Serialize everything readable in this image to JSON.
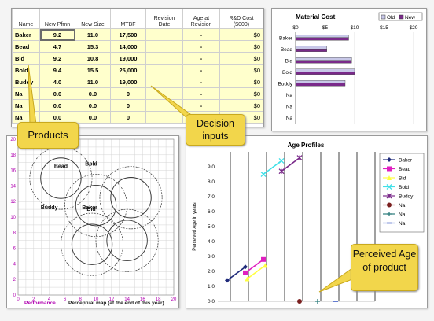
{
  "table": {
    "headers": [
      "Name",
      "New Pfmn",
      "New Size",
      "MTBF",
      "Revision Date",
      "Age at Revision",
      "R&D Cost ($000)"
    ],
    "rows": [
      {
        "name": "Baker",
        "pfmn": "9.2",
        "size": "11.0",
        "mtbf": "17,500",
        "rev": "",
        "age": "-",
        "cost": "$0"
      },
      {
        "name": "Bead",
        "pfmn": "4.7",
        "size": "15.3",
        "mtbf": "14,000",
        "rev": "",
        "age": "-",
        "cost": "$0"
      },
      {
        "name": "Bid",
        "pfmn": "9.2",
        "size": "10.8",
        "mtbf": "19,000",
        "rev": "",
        "age": "-",
        "cost": "$0"
      },
      {
        "name": "Bold",
        "pfmn": "9.4",
        "size": "15.5",
        "mtbf": "25,000",
        "rev": "",
        "age": "-",
        "cost": "$0"
      },
      {
        "name": "Buddy",
        "pfmn": "4.0",
        "size": "11.0",
        "mtbf": "19,000",
        "rev": "",
        "age": "-",
        "cost": "$0"
      },
      {
        "name": "Na",
        "pfmn": "0.0",
        "size": "0.0",
        "mtbf": "0",
        "rev": "",
        "age": "-",
        "cost": "$0"
      },
      {
        "name": "Na",
        "pfmn": "0.0",
        "size": "0.0",
        "mtbf": "0",
        "rev": "",
        "age": "-",
        "cost": "$0"
      },
      {
        "name": "Na",
        "pfmn": "0.0",
        "size": "0.0",
        "mtbf": "0",
        "rev": "",
        "age": "-",
        "cost": "$0"
      }
    ]
  },
  "callouts": {
    "products": "Products",
    "decision": "Decision inputs",
    "perceived": "Perceived Age of product"
  },
  "material_cost": {
    "title": "Material Cost",
    "legend": [
      "Old",
      "New"
    ],
    "x_ticks": [
      "$0",
      "$5",
      "$10",
      "$15",
      "$20"
    ],
    "categories": [
      "Baker",
      "Bead",
      "Bid",
      "Bold",
      "Buddy",
      "Na",
      "Na",
      "Na"
    ],
    "old": [
      9.0,
      5.3,
      9.5,
      10.0,
      8.4,
      0,
      0,
      0
    ],
    "new": [
      9.0,
      5.3,
      9.5,
      10.0,
      8.4,
      0,
      0,
      0
    ],
    "xlim": [
      0,
      20
    ]
  },
  "perceptual_map": {
    "xlabel": "Performance",
    "footer": "Perceptual map (at the end of this year)",
    "ticks": [
      "0",
      "2",
      "4",
      "6",
      "8",
      "10",
      "12",
      "14",
      "16",
      "18",
      "20"
    ],
    "labels": [
      {
        "text": "Bead",
        "x": 5.5,
        "y": 16.3
      },
      {
        "text": "Bold",
        "x": 9.4,
        "y": 16.6
      },
      {
        "text": "Buddy",
        "x": 4.0,
        "y": 11.0
      },
      {
        "text": "Baker",
        "x": 9.2,
        "y": 11.0
      },
      {
        "text": "Bid",
        "x": 9.4,
        "y": 10.8
      }
    ],
    "circles": [
      {
        "x": 5.5,
        "y": 15.0,
        "r": 4.0,
        "dash": true
      },
      {
        "x": 5.5,
        "y": 15.0,
        "r": 2.6,
        "dash": false
      },
      {
        "x": 10.0,
        "y": 11.5,
        "r": 4.0,
        "dash": true
      },
      {
        "x": 10.0,
        "y": 11.5,
        "r": 2.6,
        "dash": false
      },
      {
        "x": 14.5,
        "y": 12.5,
        "r": 4.0,
        "dash": true
      },
      {
        "x": 14.5,
        "y": 12.5,
        "r": 2.6,
        "dash": false
      },
      {
        "x": 9.5,
        "y": 6.5,
        "r": 4.0,
        "dash": true
      },
      {
        "x": 9.5,
        "y": 6.5,
        "r": 2.6,
        "dash": false
      },
      {
        "x": 14.0,
        "y": 7.0,
        "r": 4.0,
        "dash": true
      },
      {
        "x": 14.0,
        "y": 7.0,
        "r": 2.6,
        "dash": false
      }
    ]
  },
  "chart_data": {
    "type": "line",
    "title": "Age Profiles",
    "ylabel": "Perceived Age in years",
    "ylim": [
      0,
      10
    ],
    "y_ticks": [
      "0.0",
      "1.0",
      "2.0",
      "3.0",
      "4.0",
      "5.0",
      "6.0",
      "7.0",
      "8.0",
      "9.0"
    ],
    "series": [
      {
        "name": "Baker",
        "color": "#1f2a7a",
        "marker": "diamond",
        "points": [
          [
            0,
            1.4
          ],
          [
            1,
            2.3
          ]
        ]
      },
      {
        "name": "Bead",
        "color": "#e020c0",
        "marker": "square",
        "points": [
          [
            1,
            1.9
          ],
          [
            2,
            2.8
          ]
        ]
      },
      {
        "name": "Bid",
        "color": "#ffff40",
        "marker": "triangle",
        "points": [
          [
            1.1,
            1.5
          ],
          [
            2.1,
            2.4
          ]
        ]
      },
      {
        "name": "Bold",
        "color": "#40e0e8",
        "marker": "x",
        "points": [
          [
            2,
            8.5
          ],
          [
            3,
            9.4
          ]
        ]
      },
      {
        "name": "Buddy",
        "color": "#7a2a8a",
        "marker": "star",
        "points": [
          [
            3,
            8.7
          ],
          [
            4,
            9.6
          ]
        ]
      },
      {
        "name": "Na",
        "color": "#7a2020",
        "marker": "circle",
        "points": [
          [
            4,
            0
          ]
        ]
      },
      {
        "name": "Na",
        "color": "#2a7a7a",
        "marker": "plus",
        "points": [
          [
            5,
            0
          ]
        ]
      },
      {
        "name": "Na",
        "color": "#3050c0",
        "marker": "dash",
        "points": [
          [
            6,
            0
          ]
        ]
      }
    ]
  }
}
